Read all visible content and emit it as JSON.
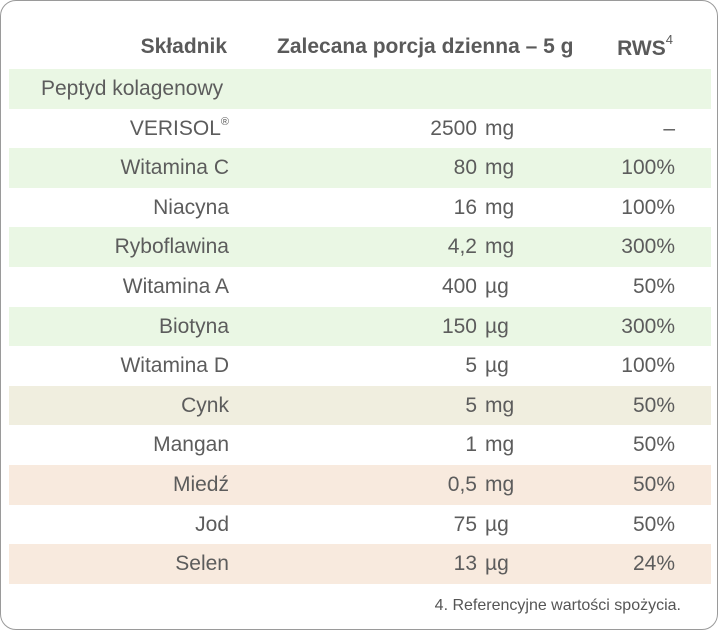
{
  "header": {
    "col_name": "Składnik",
    "col_portion": "Zalecana porcja dzienna – 5 g",
    "col_rws": "RWS",
    "col_rws_sup": "4"
  },
  "rows": [
    {
      "name": "Peptyd kolagenowy",
      "num": "",
      "unit": "",
      "rws": "",
      "bg": "green",
      "align": "left"
    },
    {
      "name": "VERISOL",
      "sup": "®",
      "num": "2500",
      "unit": "mg",
      "rws": "–",
      "bg": "white"
    },
    {
      "name": "Witamina C",
      "num": "80",
      "unit": "mg",
      "rws": "100%",
      "bg": "green"
    },
    {
      "name": "Niacyna",
      "num": "16",
      "unit": "mg",
      "rws": "100%",
      "bg": "white"
    },
    {
      "name": "Ryboflawina",
      "num": "4,2",
      "unit": "mg",
      "rws": "300%",
      "bg": "green"
    },
    {
      "name": "Witamina A",
      "num": "400",
      "unit": "µg",
      "rws": "50%",
      "bg": "white"
    },
    {
      "name": "Biotyna",
      "num": "150",
      "unit": "µg",
      "rws": "300%",
      "bg": "green"
    },
    {
      "name": "Witamina D",
      "num": "5",
      "unit": "µg",
      "rws": "100%",
      "bg": "white"
    },
    {
      "name": "Cynk",
      "num": "5",
      "unit": "mg",
      "rws": "50%",
      "bg": "olive"
    },
    {
      "name": "Mangan",
      "num": "1",
      "unit": "mg",
      "rws": "50%",
      "bg": "white"
    },
    {
      "name": "Miedź",
      "num": "0,5",
      "unit": "mg",
      "rws": "50%",
      "bg": "peach"
    },
    {
      "name": "Jod",
      "num": "75",
      "unit": "µg",
      "rws": "50%",
      "bg": "white"
    },
    {
      "name": "Selen",
      "num": "13",
      "unit": "µg",
      "rws": "24%",
      "bg": "peach"
    }
  ],
  "footnote": "4. Referencyjne wartości spożycia.",
  "colors": {
    "green": "#eaf7e4",
    "olive": "#f0eedf",
    "peach": "#f8eade",
    "border": "#9a9a9a",
    "text": "#5c5c5c"
  }
}
